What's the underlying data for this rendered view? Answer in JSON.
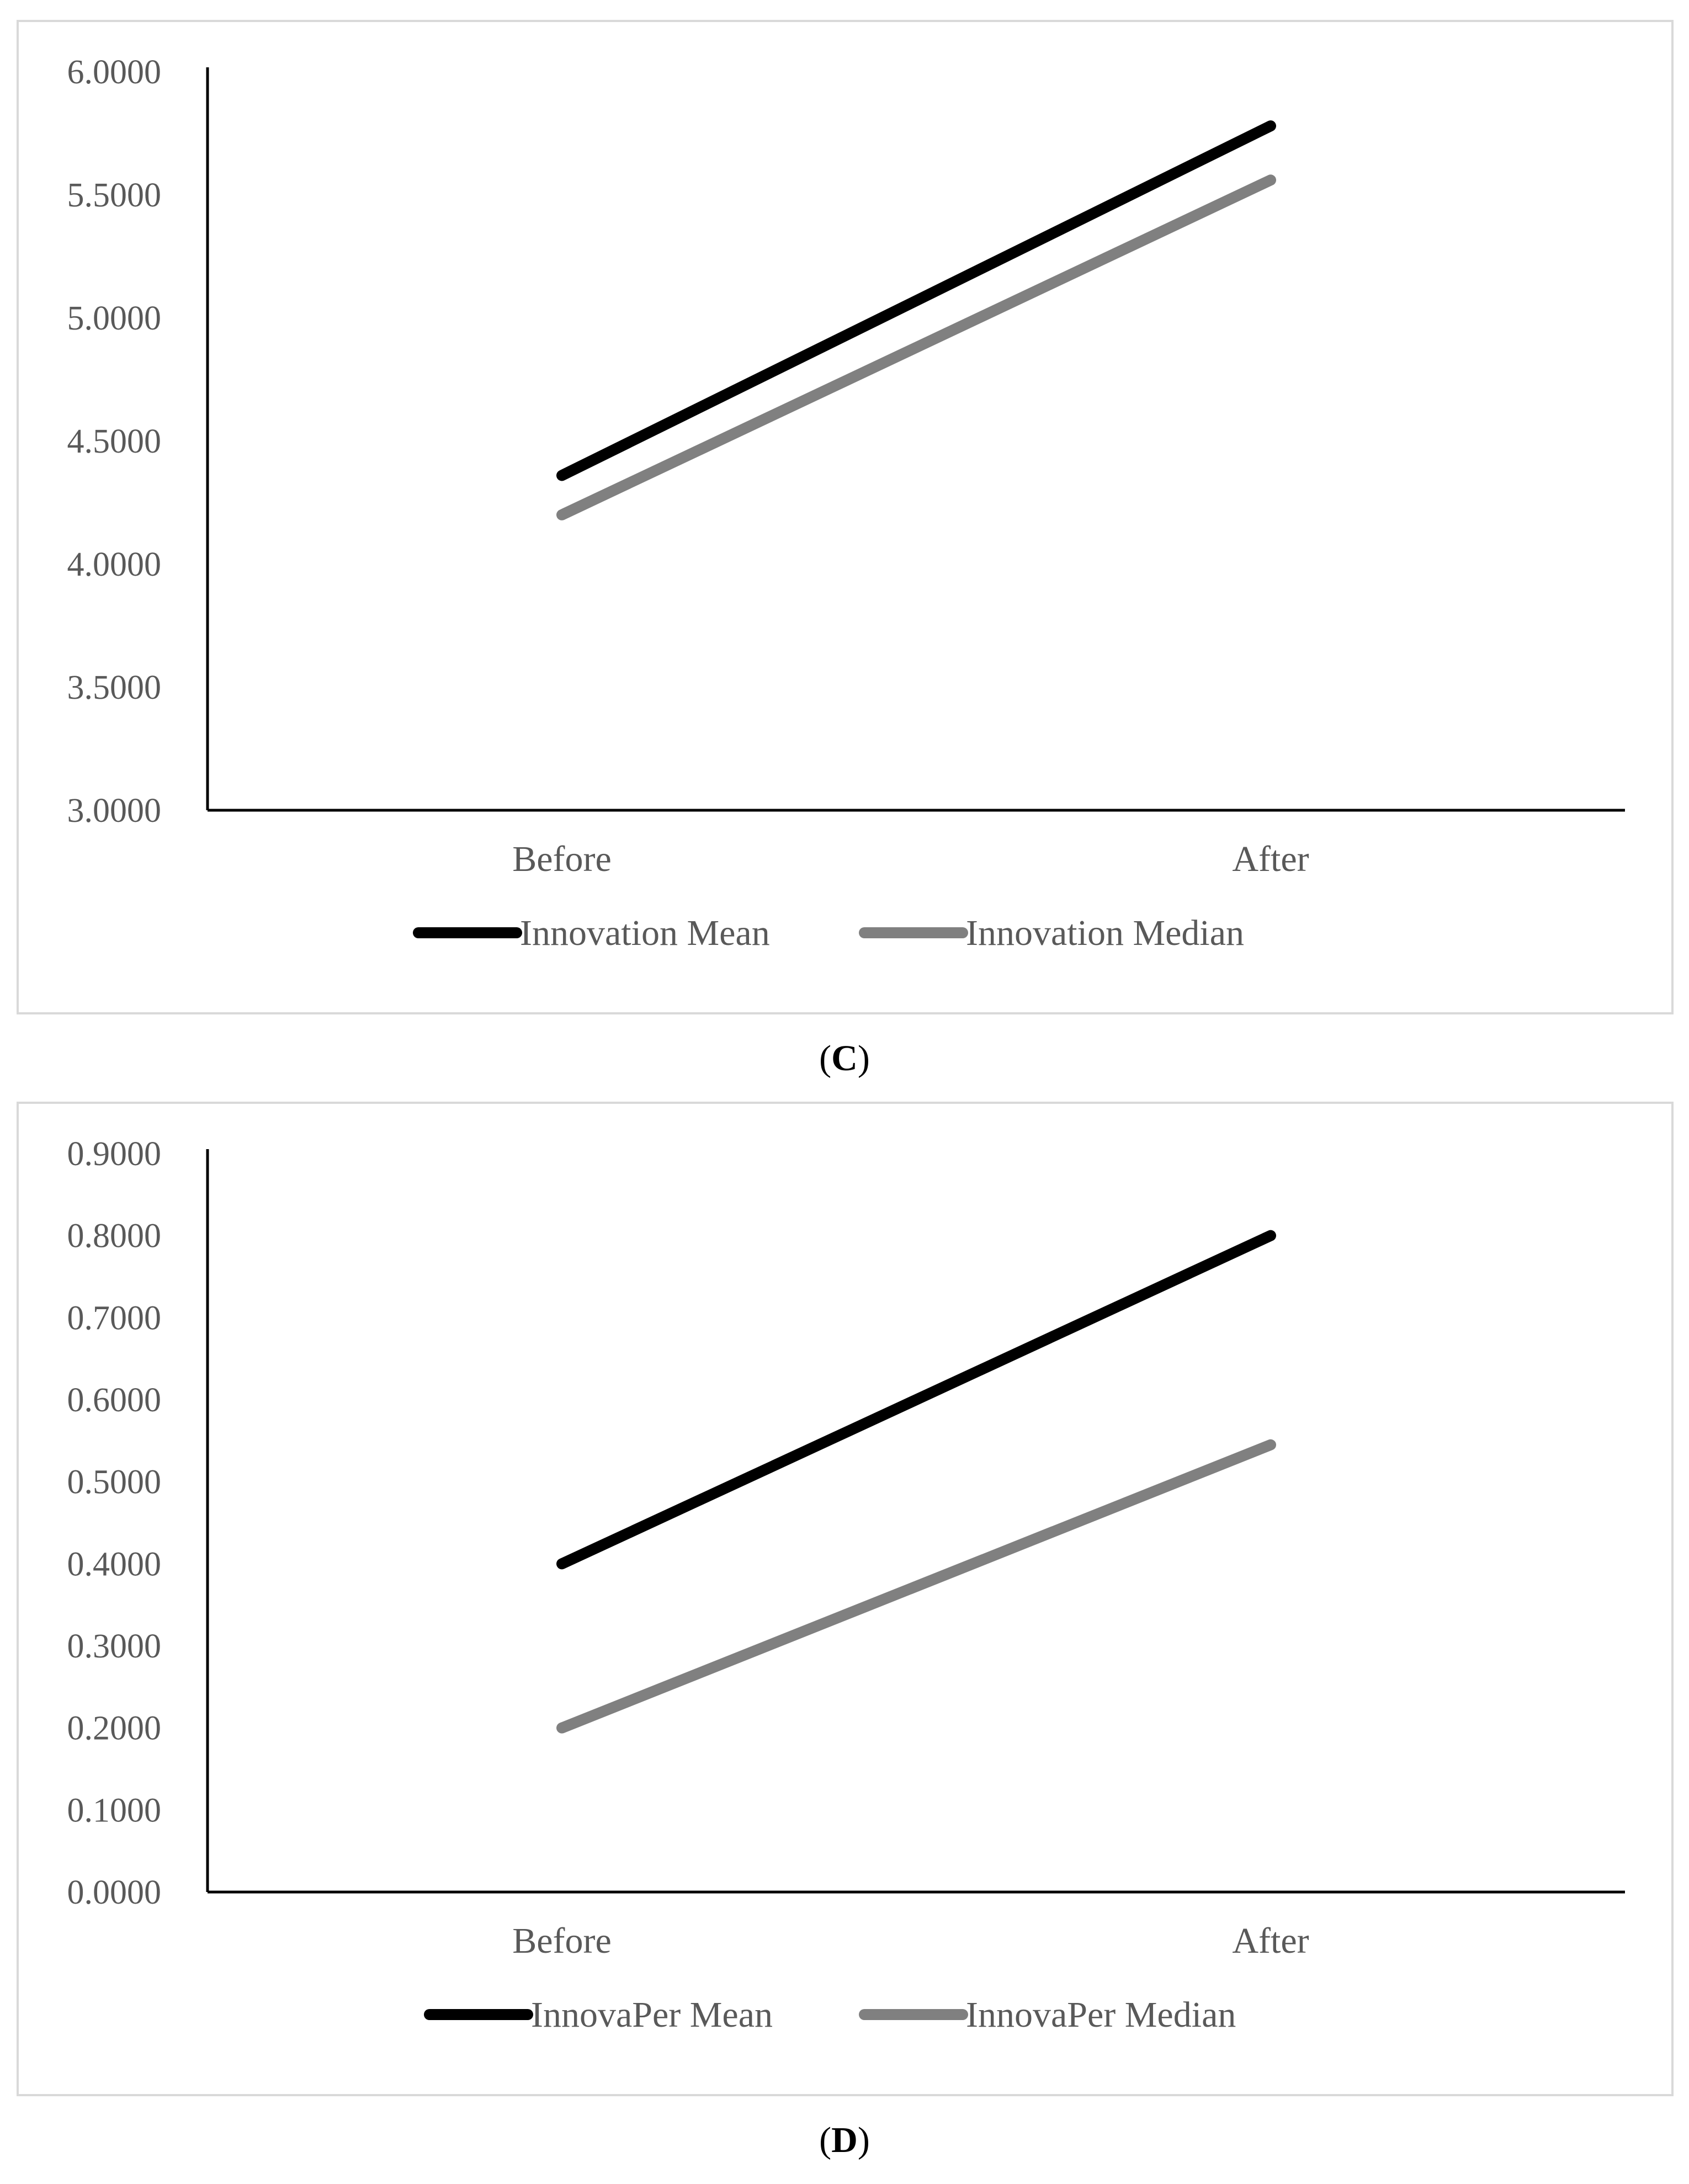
{
  "chart_data": [
    {
      "type": "line",
      "panel": "C",
      "title": "",
      "xlabel": "",
      "ylabel": "",
      "categories": [
        "Before",
        "After"
      ],
      "ylim": [
        3.0,
        6.0
      ],
      "yticks": [
        "3.0000",
        "3.5000",
        "4.0000",
        "4.5000",
        "5.0000",
        "5.5000",
        "6.0000"
      ],
      "grid": false,
      "legend_position": "bottom",
      "series": [
        {
          "name": "Innovation Mean",
          "values": [
            4.36,
            5.78
          ],
          "color": "#000000"
        },
        {
          "name": "Innovation Median",
          "values": [
            4.2,
            5.56
          ],
          "color": "#808080"
        }
      ]
    },
    {
      "type": "line",
      "panel": "D",
      "title": "",
      "xlabel": "",
      "ylabel": "",
      "categories": [
        "Before",
        "After"
      ],
      "ylim": [
        0.0,
        0.9
      ],
      "yticks": [
        "0.0000",
        "0.1000",
        "0.2000",
        "0.3000",
        "0.4000",
        "0.5000",
        "0.6000",
        "0.7000",
        "0.8000",
        "0.9000"
      ],
      "grid": false,
      "legend_position": "bottom",
      "series": [
        {
          "name": "InnovaPer Mean",
          "values": [
            0.4,
            0.8
          ],
          "color": "#000000"
        },
        {
          "name": "InnovaPer Median",
          "values": [
            0.2,
            0.545
          ],
          "color": "#808080"
        }
      ]
    }
  ],
  "captions": {
    "c": {
      "open": "(",
      "letter": "C",
      "close": ")"
    },
    "d": {
      "open": "(",
      "letter": "D",
      "close": ")"
    }
  }
}
